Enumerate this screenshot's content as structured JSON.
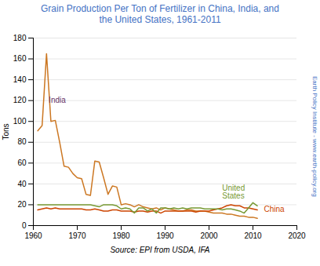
{
  "chart_data": {
    "type": "line",
    "title": "Grain Production Per Ton of Fertilizer in China, India, and\nthe United States, 1961-2011",
    "title_color": "#4472C4",
    "ylabel": "Tons",
    "source": "Source: EPI from USDA, IFA",
    "watermark": "Earth Policy Institute - www.earth-policy.org",
    "xlim": [
      1960,
      2020
    ],
    "ylim": [
      0,
      180
    ],
    "xticks": [
      1960,
      1970,
      1980,
      1990,
      2000,
      2010,
      2020
    ],
    "yticks": [
      0,
      20,
      40,
      60,
      80,
      100,
      120,
      140,
      160,
      180
    ],
    "grid": true,
    "x": [
      1961,
      1962,
      1963,
      1964,
      1965,
      1966,
      1967,
      1968,
      1969,
      1970,
      1971,
      1972,
      1973,
      1974,
      1975,
      1976,
      1977,
      1978,
      1979,
      1980,
      1981,
      1982,
      1983,
      1984,
      1985,
      1986,
      1987,
      1988,
      1989,
      1990,
      1991,
      1992,
      1993,
      1994,
      1995,
      1996,
      1997,
      1998,
      1999,
      2000,
      2001,
      2002,
      2003,
      2004,
      2005,
      2006,
      2007,
      2008,
      2009,
      2010,
      2011
    ],
    "series": [
      {
        "name": "India",
        "color": "#CC7722",
        "values": [
          91,
          96,
          165,
          100,
          101,
          80,
          57,
          56,
          50,
          46,
          45,
          30,
          29,
          62,
          61,
          46,
          30,
          38,
          37,
          20,
          21,
          20,
          18,
          20,
          18,
          17,
          16,
          17,
          15,
          17,
          16,
          15,
          14,
          14,
          15,
          15,
          14,
          14,
          14,
          13,
          12,
          12,
          12,
          11,
          11,
          10,
          9,
          9,
          8,
          8,
          7
        ]
      },
      {
        "name": "China",
        "color": "#CC4400",
        "values": [
          15,
          16,
          17,
          16,
          17,
          16,
          16,
          16,
          16,
          16,
          16,
          15,
          15,
          16,
          15,
          14,
          14,
          15,
          15,
          14,
          14,
          14,
          13,
          14,
          14,
          13,
          14,
          14,
          12,
          14,
          14,
          14,
          14,
          14,
          14,
          14,
          13,
          14,
          14,
          14,
          15,
          16,
          17,
          19,
          20,
          19,
          19,
          17,
          17,
          16,
          15
        ]
      },
      {
        "name": "United\nStates",
        "color": "#779933",
        "values": [
          20,
          20,
          20,
          20,
          20,
          20,
          20,
          20,
          20,
          20,
          20,
          20,
          20,
          19,
          18,
          20,
          20,
          20,
          19,
          16,
          17,
          16,
          12,
          17,
          17,
          14,
          16,
          12,
          17,
          17,
          16,
          17,
          16,
          17,
          16,
          17,
          17,
          17,
          16,
          16,
          16,
          16,
          15,
          16,
          16,
          15,
          14,
          12,
          17,
          22,
          19
        ]
      }
    ],
    "annotations": [
      {
        "text": "India",
        "x": 1963.5,
        "y": 118,
        "color": "#663366"
      },
      {
        "text": "United\nStates",
        "x": 2003,
        "y": 26,
        "color": "#779933"
      },
      {
        "text": "China",
        "x": 2012.5,
        "y": 13,
        "color": "#CC4400"
      }
    ]
  }
}
